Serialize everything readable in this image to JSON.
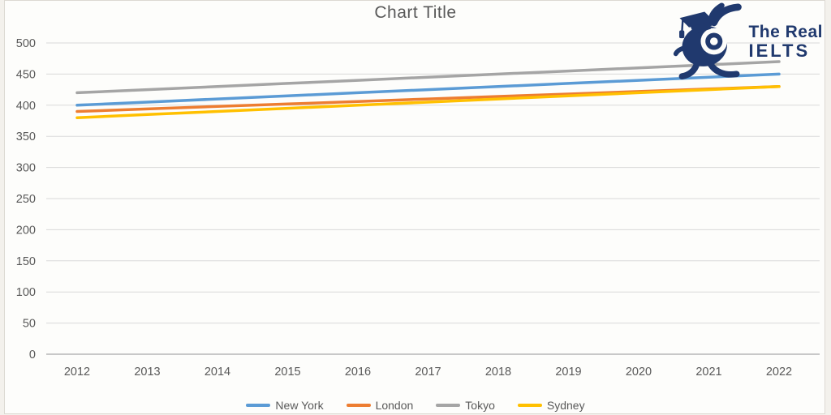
{
  "page": {
    "background": "#f3f1ec",
    "chart_background": "#fdfdfb",
    "border_color": "#dcd9d2"
  },
  "chart_data": {
    "type": "line",
    "title": "Chart Title",
    "title_color": "#595959",
    "categories": [
      "2012",
      "2013",
      "2014",
      "2015",
      "2016",
      "2017",
      "2018",
      "2019",
      "2020",
      "2021",
      "2022"
    ],
    "series": [
      {
        "name": "New York",
        "color": "#5B9BD5",
        "values": [
          400,
          405,
          410,
          415,
          420,
          425,
          430,
          435,
          440,
          445,
          450
        ]
      },
      {
        "name": "London",
        "color": "#ED7D31",
        "values": [
          390,
          394,
          398,
          402,
          406,
          410,
          414,
          418,
          422,
          426,
          430
        ]
      },
      {
        "name": "Tokyo",
        "color": "#A5A5A5",
        "values": [
          420,
          425,
          430,
          435,
          440,
          445,
          450,
          455,
          460,
          465,
          470
        ]
      },
      {
        "name": "Sydney",
        "color": "#FFC000",
        "values": [
          380,
          385,
          390,
          395,
          400,
          405,
          410,
          415,
          420,
          425,
          430
        ]
      }
    ],
    "xlabel": "",
    "ylabel": "",
    "ylim": [
      0,
      500
    ],
    "yticks": [
      0,
      50,
      100,
      150,
      200,
      250,
      300,
      350,
      400,
      450,
      500
    ],
    "grid": true,
    "gridline_color": "#d9d9d9",
    "axis_line_color": "#b7b7b7",
    "axis_label_color": "#595959",
    "legend_position": "bottom"
  },
  "logo": {
    "line1": "The Real",
    "line2": "IELTS",
    "color": "#20396E",
    "mascot": "snail-with-graduation-cap-icon"
  }
}
